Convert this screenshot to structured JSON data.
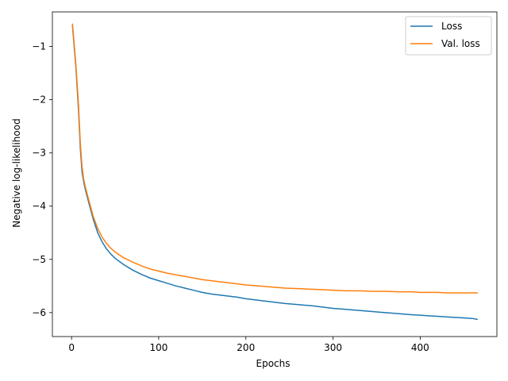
{
  "chart_data": {
    "type": "line",
    "title": "",
    "xlabel": "Epochs",
    "ylabel": "Negative log-likelihood",
    "xlim": [
      -22,
      488
    ],
    "ylim": [
      -6.45,
      -0.35
    ],
    "xticks": [
      0,
      100,
      200,
      300,
      400
    ],
    "yticks": [
      -1,
      -2,
      -3,
      -4,
      -5,
      -6
    ],
    "xtick_labels": [
      "0",
      "100",
      "200",
      "300",
      "400"
    ],
    "ytick_labels": [
      "−1",
      "−2",
      "−3",
      "−4",
      "−5",
      "−6"
    ],
    "grid": false,
    "legend_position": "top-right",
    "series": [
      {
        "name": "Loss",
        "color": "#1f77b4",
        "x": [
          1,
          3,
          5,
          8,
          10,
          12,
          14,
          16,
          20,
          25,
          30,
          35,
          40,
          45,
          50,
          55,
          60,
          70,
          80,
          90,
          100,
          110,
          120,
          130,
          140,
          150,
          160,
          175,
          190,
          200,
          215,
          230,
          245,
          260,
          275,
          290,
          300,
          315,
          330,
          345,
          360,
          375,
          390,
          400,
          410,
          420,
          430,
          440,
          450,
          460,
          466
        ],
        "y": [
          -0.6,
          -1.0,
          -1.4,
          -2.2,
          -2.9,
          -3.35,
          -3.55,
          -3.7,
          -3.95,
          -4.25,
          -4.5,
          -4.67,
          -4.8,
          -4.9,
          -4.98,
          -5.04,
          -5.1,
          -5.2,
          -5.28,
          -5.35,
          -5.4,
          -5.45,
          -5.5,
          -5.54,
          -5.58,
          -5.62,
          -5.65,
          -5.68,
          -5.71,
          -5.74,
          -5.77,
          -5.8,
          -5.83,
          -5.85,
          -5.87,
          -5.9,
          -5.92,
          -5.94,
          -5.96,
          -5.98,
          -6.0,
          -6.02,
          -6.04,
          -6.05,
          -6.06,
          -6.07,
          -6.08,
          -6.09,
          -6.1,
          -6.11,
          -6.13
        ]
      },
      {
        "name": "Val. loss",
        "color": "#ff7f0e",
        "x": [
          1,
          3,
          5,
          8,
          10,
          12,
          14,
          16,
          20,
          25,
          30,
          35,
          40,
          45,
          50,
          55,
          60,
          70,
          80,
          90,
          100,
          110,
          120,
          130,
          140,
          150,
          160,
          175,
          190,
          200,
          215,
          230,
          245,
          260,
          275,
          290,
          300,
          315,
          330,
          345,
          360,
          375,
          390,
          400,
          410,
          420,
          430,
          440,
          450,
          460,
          466
        ],
        "y": [
          -0.57,
          -0.95,
          -1.35,
          -2.1,
          -2.8,
          -3.25,
          -3.5,
          -3.65,
          -3.9,
          -4.2,
          -4.42,
          -4.58,
          -4.7,
          -4.79,
          -4.86,
          -4.92,
          -4.97,
          -5.05,
          -5.12,
          -5.18,
          -5.22,
          -5.26,
          -5.29,
          -5.32,
          -5.35,
          -5.38,
          -5.4,
          -5.43,
          -5.46,
          -5.48,
          -5.5,
          -5.52,
          -5.54,
          -5.55,
          -5.56,
          -5.57,
          -5.58,
          -5.59,
          -5.59,
          -5.6,
          -5.6,
          -5.61,
          -5.61,
          -5.62,
          -5.62,
          -5.62,
          -5.63,
          -5.63,
          -5.63,
          -5.63,
          -5.63
        ]
      }
    ]
  }
}
